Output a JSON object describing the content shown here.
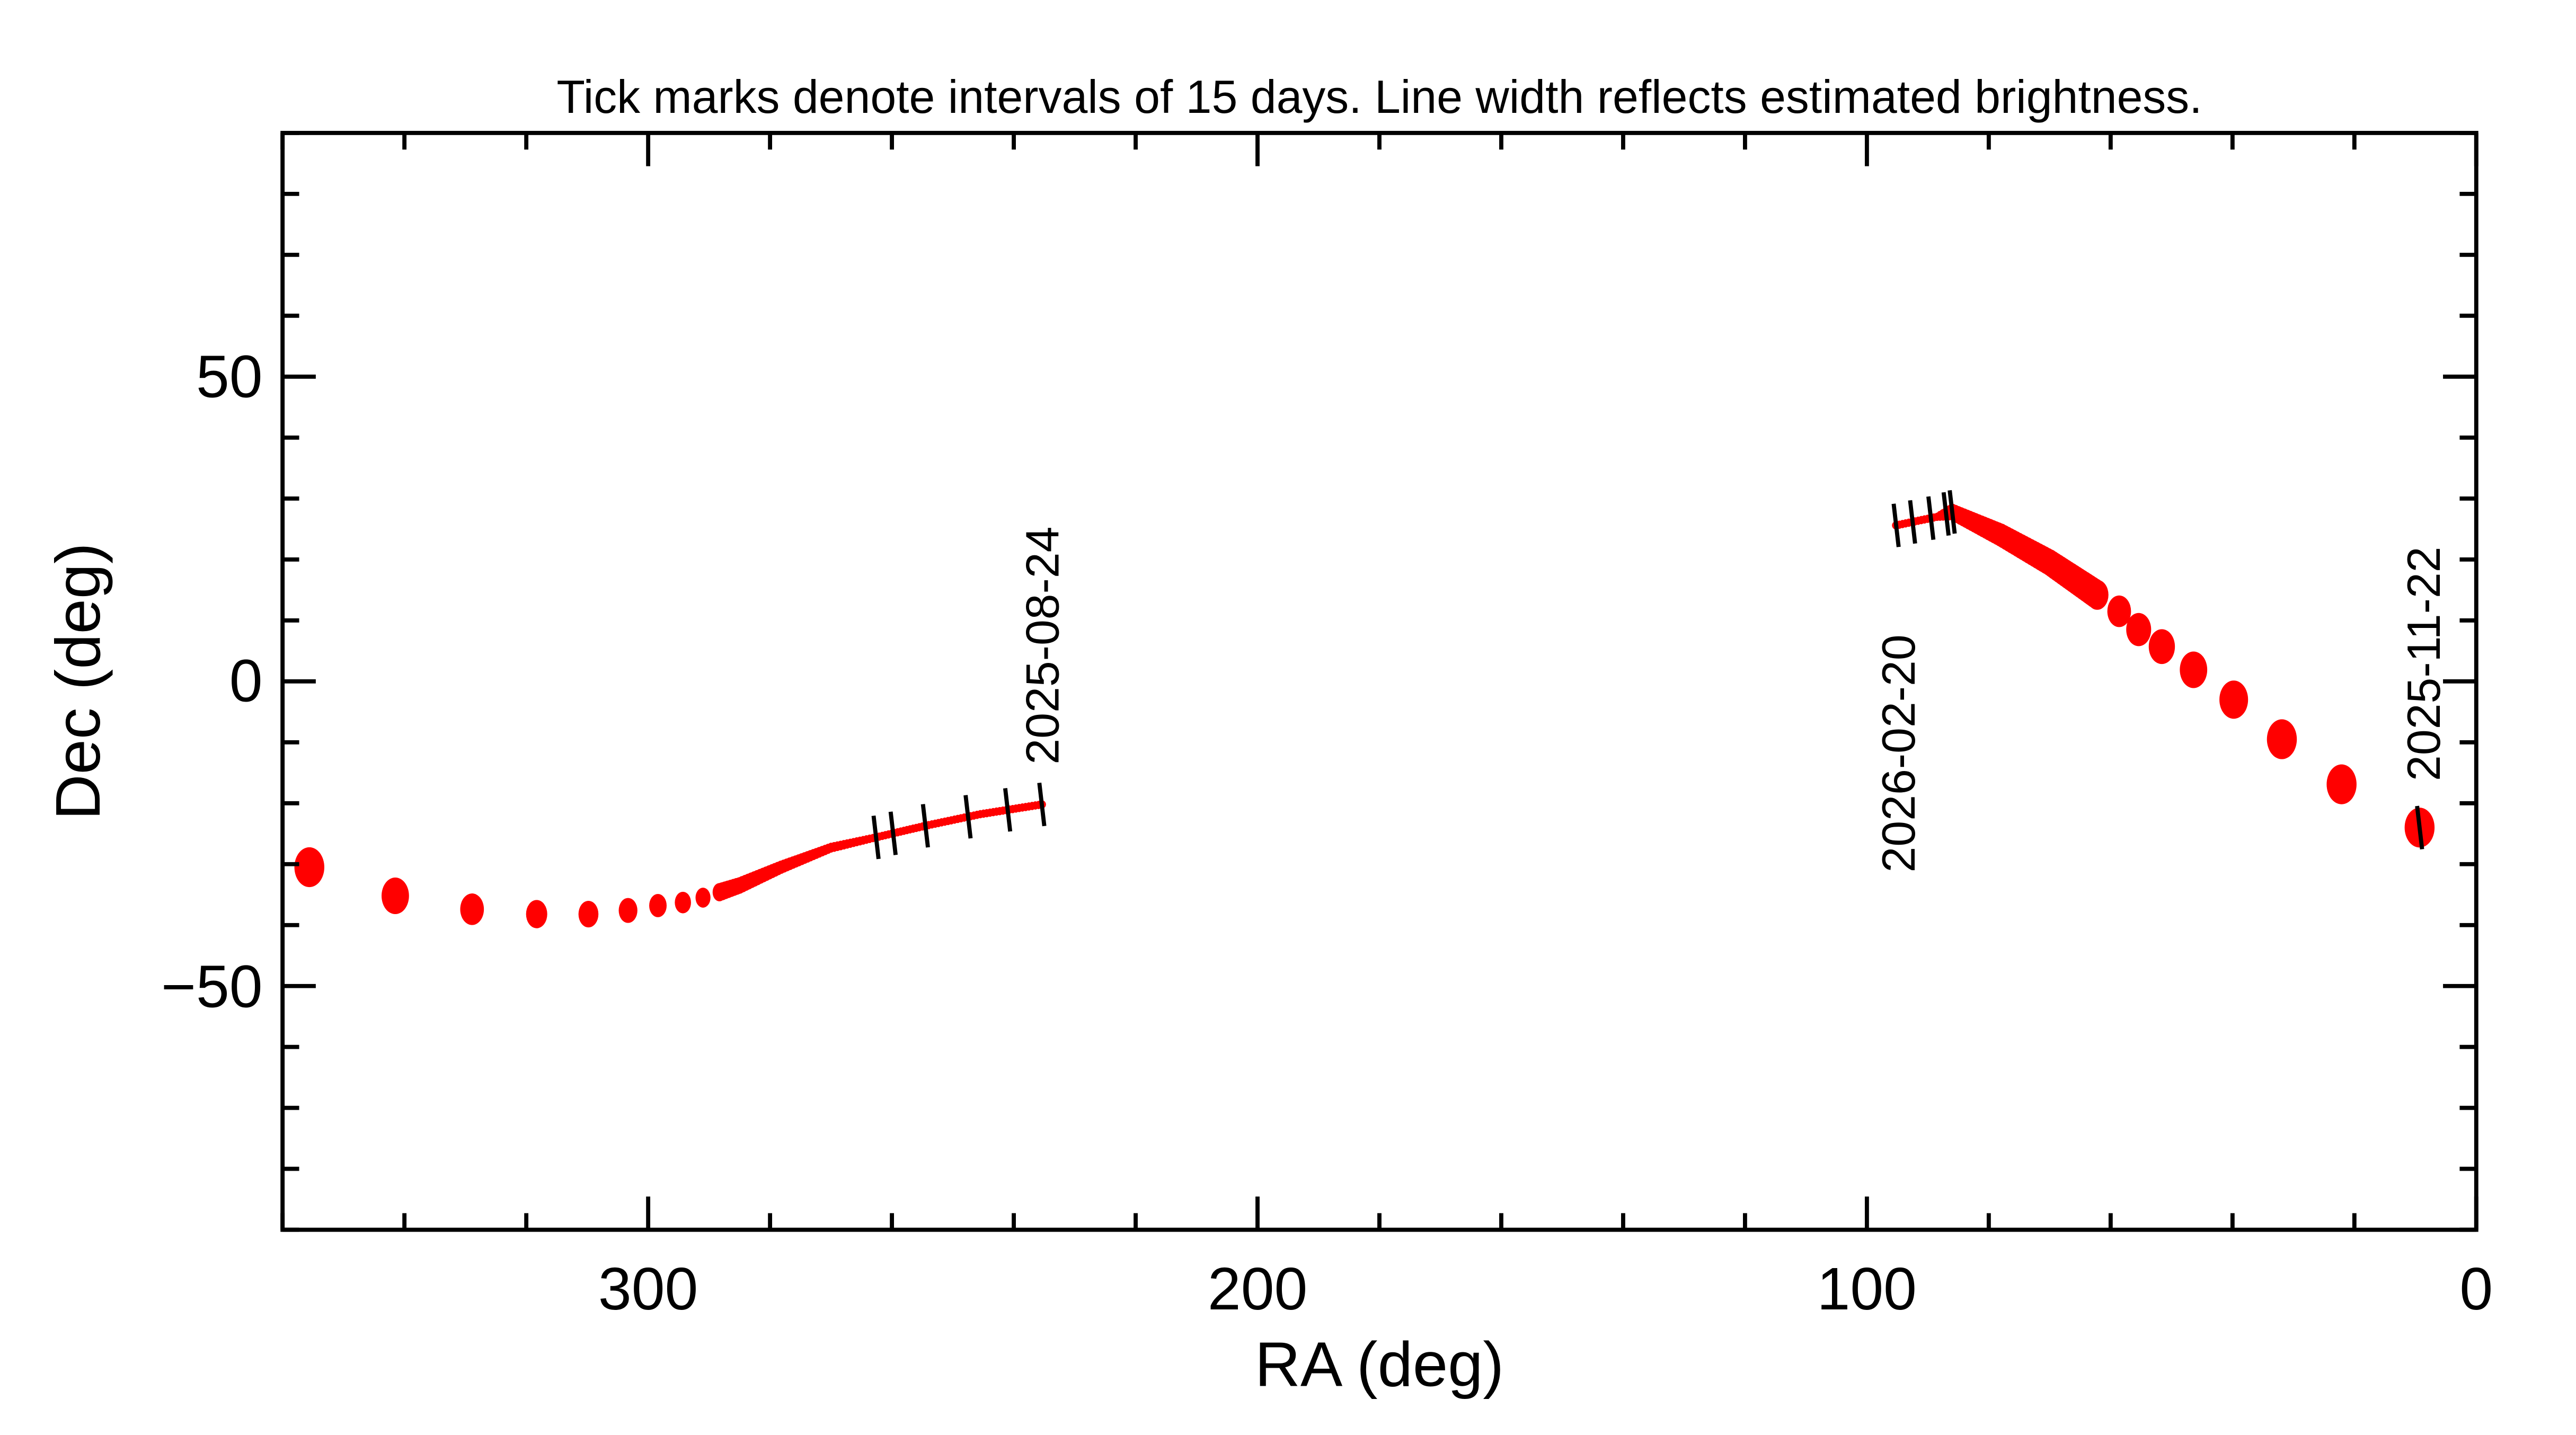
{
  "chart_data": {
    "type": "scatter",
    "title": "Tick marks denote intervals of 15 days.  Line width reflects estimated brightness.",
    "xlabel": "RA (deg)",
    "ylabel": "Dec (deg)",
    "xlim": [
      360,
      0
    ],
    "ylim": [
      -90,
      90
    ],
    "x_ticks": [
      300,
      200,
      100,
      0
    ],
    "x_tick_labels": [
      "300",
      "200",
      "100",
      "0"
    ],
    "y_ticks": [
      50,
      0,
      -50
    ],
    "y_tick_labels": [
      "50",
      "0",
      "−50"
    ],
    "color": "#ff0000",
    "tick_color": "#000000",
    "segments": [
      {
        "points": [
          {
            "ra": 355.6,
            "dec": -30.5,
            "brightness": 12
          },
          {
            "ra": 341.5,
            "dec": -35.2,
            "brightness": 11
          },
          {
            "ra": 328.9,
            "dec": -37.4,
            "brightness": 9.5
          },
          {
            "ra": 318.3,
            "dec": -38.2,
            "brightness": 8.5
          },
          {
            "ra": 309.8,
            "dec": -38.2,
            "brightness": 8
          },
          {
            "ra": 303.3,
            "dec": -37.6,
            "brightness": 7.5
          },
          {
            "ra": 298.4,
            "dec": -36.8,
            "brightness": 7
          },
          {
            "ra": 294.3,
            "dec": -36.3,
            "brightness": 6.5
          },
          {
            "ra": 291.0,
            "dec": -35.5,
            "brightness": 6
          },
          {
            "ra": 288.3,
            "dec": -34.6,
            "brightness": 5.5
          },
          {
            "ra": 285.0,
            "dec": -33.5,
            "brightness": 5
          },
          {
            "ra": 278.2,
            "dec": -30.5,
            "brightness": 4
          },
          {
            "ra": 270.0,
            "dec": -27.3,
            "brightness": 3
          },
          {
            "ra": 262.6,
            "dec": -25.6,
            "brightness": 2.5
          },
          {
            "ra": 254.5,
            "dec": -23.7,
            "brightness": 2.5
          },
          {
            "ra": 245.5,
            "dec": -21.8,
            "brightness": 2.5
          },
          {
            "ra": 235.4,
            "dec": -20.2,
            "brightness": 2.5
          }
        ],
        "date_ticks_ra": [
          262.6,
          259.8,
          254.5,
          247.5,
          241.0,
          235.4
        ],
        "end_label": "2025-08-24"
      },
      {
        "points": [
          {
            "ra": 9.3,
            "dec": -24.0,
            "brightness": 12
          },
          {
            "ra": 22.1,
            "dec": -16.9,
            "brightness": 12
          },
          {
            "ra": 31.9,
            "dec": -9.5,
            "brightness": 12
          },
          {
            "ra": 39.8,
            "dec": -3.0,
            "brightness": 11.5
          },
          {
            "ra": 46.4,
            "dec": 1.9,
            "brightness": 11
          },
          {
            "ra": 51.6,
            "dec": 5.7,
            "brightness": 10.5
          },
          {
            "ra": 55.4,
            "dec": 8.5,
            "brightness": 10
          },
          {
            "ra": 58.6,
            "dec": 11.5,
            "brightness": 9.5
          },
          {
            "ra": 62.2,
            "dec": 14.2,
            "brightness": 9
          },
          {
            "ra": 70.0,
            "dec": 19.5,
            "brightness": 8
          },
          {
            "ra": 78.0,
            "dec": 24.0,
            "brightness": 7
          },
          {
            "ra": 86.0,
            "dec": 27.8,
            "brightness": 5
          },
          {
            "ra": 88.5,
            "dec": 27.0,
            "brightness": 2.5
          },
          {
            "ra": 95.2,
            "dec": 25.6,
            "brightness": 2.5
          }
        ],
        "date_ticks_ra": [
          9.3,
          86.0,
          87.0,
          89.5,
          92.5,
          95.2
        ],
        "start_label": "2025-11-22",
        "end_label": "2026-02-20"
      }
    ]
  }
}
